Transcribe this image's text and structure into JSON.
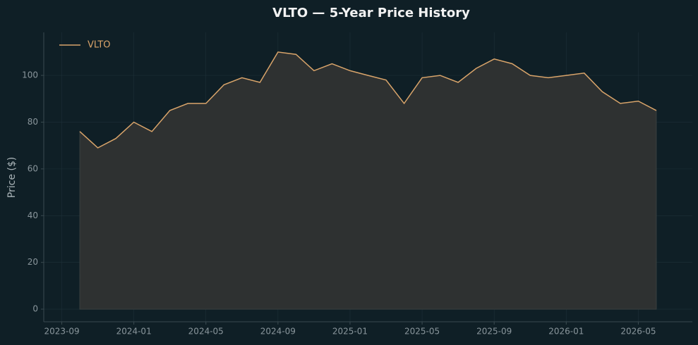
{
  "chart_data": {
    "type": "line",
    "title": "VLTO — 5-Year Price History",
    "y_label": "Price ($)",
    "x": [
      "2023-10",
      "2023-11",
      "2023-12",
      "2024-01",
      "2024-02",
      "2024-03",
      "2024-04",
      "2024-05",
      "2024-06",
      "2024-07",
      "2024-08",
      "2024-09",
      "2024-10",
      "2024-11",
      "2024-12",
      "2025-01",
      "2025-02",
      "2025-03",
      "2025-04",
      "2025-05",
      "2025-06",
      "2025-07",
      "2025-08",
      "2025-09",
      "2025-10",
      "2025-11",
      "2025-12",
      "2026-01",
      "2026-02",
      "2026-03",
      "2026-04",
      "2026-05",
      "2026-06"
    ],
    "series": [
      {
        "name": "VLTO",
        "color": "#d9a46a",
        "fill": "#2e3131",
        "values": [
          76,
          69,
          73,
          80,
          76,
          85,
          88,
          88,
          96,
          99,
          97,
          110,
          109,
          102,
          105,
          102,
          100,
          98,
          88,
          99,
          100,
          97,
          103,
          107,
          105,
          100,
          99,
          100,
          101,
          93,
          88,
          89,
          85
        ]
      }
    ],
    "xlim": [
      "2023-08",
      "2026-08"
    ],
    "xticks": [
      "2023-09",
      "2024-01",
      "2024-05",
      "2024-09",
      "2025-01",
      "2025-05",
      "2025-09",
      "2026-01",
      "2026-05"
    ],
    "ylim": [
      -5.4,
      118.4
    ],
    "yticks": [
      0,
      20,
      40,
      60,
      80,
      100
    ],
    "grid": true,
    "legend": "upper left"
  }
}
